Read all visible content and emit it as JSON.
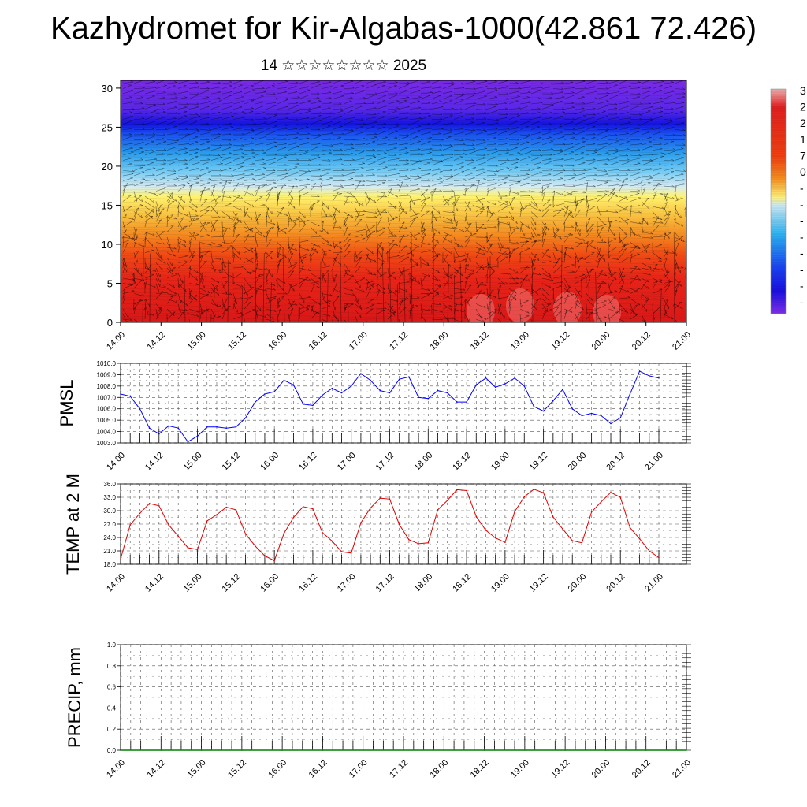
{
  "title": "Kazhydromet for Kir-Algabas-1000(42.861 72.426)",
  "subtitle": "14 ☆☆☆☆☆☆☆☆ 2025",
  "chart_data": [
    {
      "type": "heatmap",
      "yticks": [
        "0",
        "5",
        "10",
        "15",
        "20",
        "25",
        "30"
      ],
      "ylim": [
        0,
        31
      ],
      "xticks": [
        "14.00",
        "14.12",
        "15.00",
        "15.12",
        "16.00",
        "16.12",
        "17.00",
        "17.12",
        "18.00",
        "18.12",
        "19.00",
        "19.12",
        "20.00",
        "20.12",
        "21.00"
      ],
      "colorbar_labels": [
        "3",
        "2",
        "2",
        "1",
        "7",
        "0",
        "-",
        "-",
        "-",
        "-",
        "-",
        "-",
        "-",
        "-"
      ],
      "colors": {
        "top": "#7a2ae6",
        "cold": "#1a2cf0",
        "cool": "#2aaaf0",
        "mild": "#fff06a",
        "warm": "#f06a1a",
        "hot": "#e8241a"
      }
    },
    {
      "type": "line",
      "ylabel": "PMSL",
      "yticks": [
        "1010.0",
        "1009.0",
        "1008.0",
        "1007.0",
        "1006.0",
        "1005.0",
        "1004.0",
        "1003.0"
      ],
      "ylim": [
        1003.0,
        1010.0
      ],
      "xticks": [
        "14.00",
        "14.12",
        "15.00",
        "15.12",
        "16.00",
        "16.12",
        "17.00",
        "17.12",
        "18.00",
        "18.12",
        "19.00",
        "19.12",
        "20.00",
        "20.12",
        "21.00"
      ],
      "color": "#0000ff",
      "x": [
        14.0,
        14.125,
        14.25,
        14.375,
        14.5,
        14.625,
        14.75,
        14.875,
        15.0,
        15.125,
        15.25,
        15.375,
        15.5,
        15.625,
        15.75,
        15.875,
        16.0,
        16.125,
        16.25,
        16.375,
        16.5,
        16.625,
        16.75,
        16.875,
        17.0,
        17.125,
        17.25,
        17.375,
        17.5,
        17.625,
        17.75,
        17.875,
        18.0,
        18.125,
        18.25,
        18.375,
        18.5,
        18.625,
        18.75,
        18.875,
        19.0,
        19.125,
        19.25,
        19.375,
        19.5,
        19.625,
        19.75,
        19.875,
        20.0,
        20.125,
        20.25,
        20.375,
        20.5,
        20.625,
        20.75,
        20.875,
        21.0
      ],
      "values": [
        1007.3,
        1007.1,
        1006.0,
        1004.3,
        1003.8,
        1004.5,
        1004.3,
        1003.1,
        1003.6,
        1004.4,
        1004.4,
        1004.3,
        1004.4,
        1005.2,
        1006.6,
        1007.3,
        1007.5,
        1008.5,
        1008.1,
        1006.4,
        1006.3,
        1007.2,
        1007.8,
        1007.4,
        1008.0,
        1009.1,
        1008.5,
        1007.6,
        1007.4,
        1008.6,
        1008.8,
        1007.0,
        1006.9,
        1007.6,
        1007.4,
        1006.6,
        1006.6,
        1008.1,
        1008.7,
        1007.9,
        1008.2,
        1008.7,
        1008.0,
        1006.2,
        1005.8,
        1006.7,
        1007.7,
        1006.0,
        1005.4,
        1005.6,
        1005.4,
        1004.7,
        1005.2,
        1007.3,
        1009.3,
        1008.9,
        1008.7
      ]
    },
    {
      "type": "line",
      "ylabel": "TEMP at 2 M",
      "yticks": [
        "36.0",
        "33.0",
        "30.0",
        "27.0",
        "24.0",
        "21.0",
        "18.0"
      ],
      "ylim": [
        18.0,
        36.0
      ],
      "xticks": [
        "14.00",
        "14.12",
        "15.00",
        "15.12",
        "16.00",
        "16.12",
        "17.00",
        "17.12",
        "18.00",
        "18.12",
        "19.00",
        "19.12",
        "20.00",
        "20.12",
        "21.00"
      ],
      "color": "#e00000",
      "x": [
        14.0,
        14.125,
        14.25,
        14.375,
        14.5,
        14.625,
        14.75,
        14.875,
        15.0,
        15.125,
        15.25,
        15.375,
        15.5,
        15.625,
        15.75,
        15.875,
        16.0,
        16.125,
        16.25,
        16.375,
        16.5,
        16.625,
        16.75,
        16.875,
        17.0,
        17.125,
        17.25,
        17.375,
        17.5,
        17.625,
        17.75,
        17.875,
        18.0,
        18.125,
        18.25,
        18.375,
        18.5,
        18.625,
        18.75,
        18.875,
        19.0,
        19.125,
        19.25,
        19.375,
        19.5,
        19.625,
        19.75,
        19.875,
        20.0,
        20.125,
        20.25,
        20.375,
        20.5,
        20.625,
        20.75,
        20.875,
        21.0
      ],
      "values": [
        19.2,
        26.8,
        29.4,
        31.6,
        31.1,
        26.8,
        24.3,
        21.7,
        21.3,
        27.7,
        29.1,
        30.8,
        30.2,
        24.8,
        22.1,
        19.9,
        18.8,
        24.9,
        28.5,
        30.9,
        30.4,
        25.1,
        23.2,
        20.8,
        20.5,
        27.3,
        30.6,
        32.8,
        32.6,
        26.9,
        23.5,
        22.6,
        22.8,
        30.2,
        32.3,
        34.7,
        34.5,
        28.7,
        25.6,
        23.9,
        22.9,
        29.8,
        33.1,
        34.8,
        34.0,
        28.6,
        25.9,
        23.3,
        22.8,
        29.7,
        32.0,
        34.1,
        33.0,
        26.2,
        23.7,
        21.0,
        19.5
      ]
    },
    {
      "type": "line",
      "ylabel": "PRECIP, mm",
      "yticks": [
        "1.0",
        "0.8",
        "0.6",
        "0.4",
        "0.2",
        "0.0"
      ],
      "ylim": [
        0.0,
        1.0
      ],
      "xticks": [
        "14.00",
        "14.12",
        "15.00",
        "15.12",
        "16.00",
        "16.12",
        "17.00",
        "17.12",
        "18.00",
        "18.12",
        "19.00",
        "19.12",
        "20.00",
        "20.12",
        "21.00"
      ],
      "color": "#008000",
      "x": [
        14.0,
        14.5,
        15.0,
        15.5,
        16.0,
        16.5,
        17.0,
        17.5,
        18.0,
        18.5,
        19.0,
        19.5,
        20.0,
        20.5,
        21.0
      ],
      "values": [
        0.0,
        0.0,
        0.0,
        0.0,
        0.0,
        0.0,
        0.0,
        0.0,
        0.0,
        0.0,
        0.0,
        0.0,
        0.0,
        0.0,
        0.0
      ]
    }
  ]
}
